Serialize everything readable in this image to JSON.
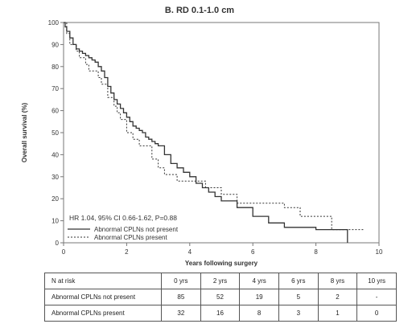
{
  "chart_data": {
    "type": "line",
    "title": "B. RD 0.1-1.0 cm",
    "xlabel": "Years following surgery",
    "ylabel": "Overall survival (%)",
    "xlim": [
      0,
      10
    ],
    "ylim": [
      0,
      100
    ],
    "xticks": [
      "0",
      "2",
      "4",
      "6",
      "8",
      "10"
    ],
    "yticks": [
      "0",
      "10",
      "20",
      "30",
      "40",
      "50",
      "60",
      "70",
      "80",
      "90",
      "100"
    ],
    "grid": false,
    "legend_position": "bottom-left",
    "annotation": "HR 1.04, 95% CI 0.66-1.62, P=0.88",
    "series": [
      {
        "name": "Abnormal CPLNs not present",
        "style": "solid",
        "color": "#333333",
        "x": [
          0,
          0.05,
          0.1,
          0.2,
          0.3,
          0.4,
          0.5,
          0.6,
          0.7,
          0.8,
          0.9,
          1.0,
          1.1,
          1.2,
          1.3,
          1.4,
          1.5,
          1.6,
          1.7,
          1.8,
          1.9,
          2.0,
          2.1,
          2.2,
          2.3,
          2.4,
          2.5,
          2.6,
          2.7,
          2.8,
          2.9,
          3.0,
          3.2,
          3.4,
          3.6,
          3.8,
          4.0,
          4.2,
          4.4,
          4.6,
          4.8,
          5.0,
          5.5,
          6.0,
          6.5,
          7.0,
          8.0,
          9.0,
          9.0
        ],
        "y": [
          100,
          98,
          96,
          93,
          90,
          88,
          87,
          86,
          85,
          84,
          83,
          82,
          80,
          78,
          75,
          71,
          68,
          65,
          63,
          61,
          59,
          57,
          55,
          53,
          52,
          51,
          50,
          48,
          47,
          46,
          45,
          44,
          40,
          36,
          34,
          32,
          30,
          27,
          25,
          23,
          21,
          19,
          16,
          12,
          9,
          7,
          6,
          6,
          0
        ]
      },
      {
        "name": "Abnormal CPLNs present",
        "style": "dashed",
        "color": "#333333",
        "x": [
          0,
          0.1,
          0.2,
          0.4,
          0.5,
          0.7,
          0.8,
          1.0,
          1.1,
          1.2,
          1.4,
          1.6,
          1.7,
          1.8,
          2.0,
          2.2,
          2.4,
          2.6,
          2.8,
          3.0,
          3.2,
          3.4,
          3.6,
          3.8,
          4.0,
          4.5,
          5.0,
          5.5,
          6.0,
          6.5,
          7.0,
          7.5,
          8.0,
          8.5,
          9.0,
          9.5
        ],
        "y": [
          100,
          95,
          90,
          87,
          84,
          81,
          78,
          78,
          75,
          72,
          66,
          62,
          59,
          56,
          50,
          47,
          44,
          44,
          38,
          34,
          31,
          31,
          28,
          28,
          28,
          25,
          22,
          18,
          18,
          18,
          16,
          12,
          12,
          6,
          6,
          6
        ]
      }
    ]
  },
  "risk_table": {
    "header": [
      "N at risk",
      "0 yrs",
      "2 yrs",
      "4 yrs",
      "6 yrs",
      "8 yrs",
      "10 yrs"
    ],
    "rows": [
      [
        "Abnormal CPLNs not present",
        "85",
        "52",
        "19",
        "5",
        "2",
        "-"
      ],
      [
        "Abnormal CPLNs present",
        "32",
        "16",
        "8",
        "3",
        "1",
        "0"
      ]
    ]
  }
}
